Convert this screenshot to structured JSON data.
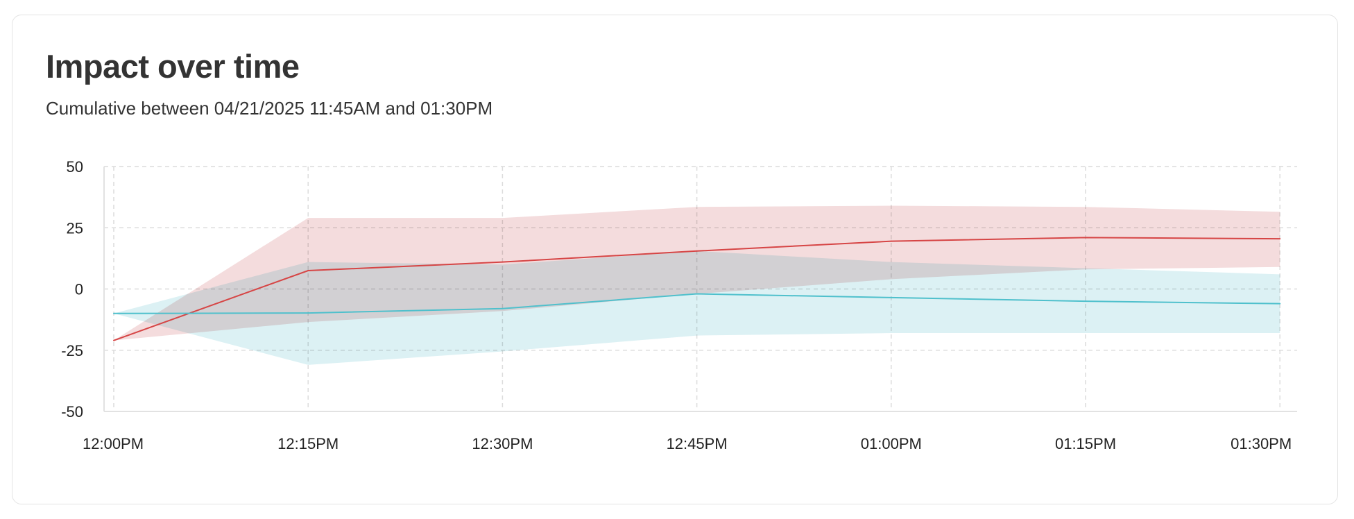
{
  "card": {
    "title": "Impact over time",
    "subtitle": "Cumulative between 04/21/2025 11:45AM and 01:30PM"
  },
  "chart_data": {
    "type": "line",
    "x": [
      "12:00PM",
      "12:15PM",
      "12:30PM",
      "12:45PM",
      "01:00PM",
      "01:15PM",
      "01:30PM"
    ],
    "y_ticks": [
      50,
      25,
      0,
      -25,
      -50
    ],
    "ylim": [
      -50,
      50
    ],
    "grid": true,
    "series": [
      {
        "color": "#d64545",
        "band_color": "#f4dcdd",
        "values": [
          -21,
          7.5,
          11,
          15.5,
          19.5,
          21,
          20.5
        ],
        "upper": [
          -21,
          29,
          29,
          33.5,
          34,
          33.5,
          31.5
        ],
        "lower": [
          -21,
          -13.5,
          -9,
          -2,
          4,
          8,
          9
        ]
      },
      {
        "color": "#4fc0cc",
        "band_color": "#dcf1f4",
        "values": [
          -10,
          -9.8,
          -8,
          -2,
          -3.5,
          -5,
          -6
        ],
        "upper": [
          -10,
          11,
          10,
          15.5,
          11,
          8.5,
          6
        ],
        "lower": [
          -10,
          -31,
          -25.5,
          -19,
          -18,
          -18,
          -18
        ]
      }
    ]
  }
}
